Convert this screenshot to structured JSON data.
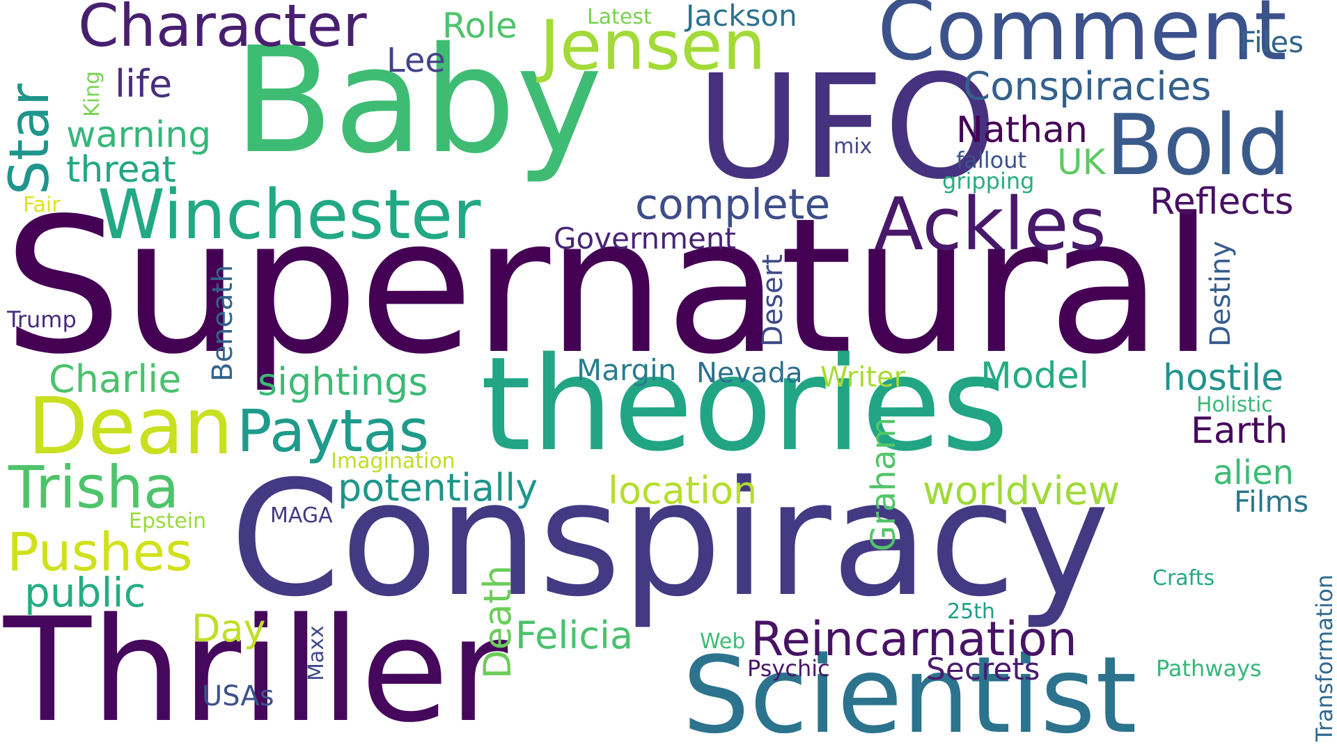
{
  "words": [
    {
      "text": "Supernatural",
      "color": "#440154"
    },
    {
      "text": "Conspiracy",
      "color": "#443983"
    },
    {
      "text": "Baby",
      "color": "#3fbc73"
    },
    {
      "text": "theories",
      "color": "#21a585"
    },
    {
      "text": "UFO",
      "color": "#46327e"
    },
    {
      "text": "Thriller",
      "color": "#46085c"
    },
    {
      "text": "Scientist",
      "color": "#2c738e"
    },
    {
      "text": "Comment",
      "color": "#3b528b"
    },
    {
      "text": "Bold",
      "color": "#3b5a8c"
    },
    {
      "text": "Jensen",
      "color": "#a2da37"
    },
    {
      "text": "Ackles",
      "color": "#48186a"
    },
    {
      "text": "Winchester",
      "color": "#22a884"
    },
    {
      "text": "Dean",
      "color": "#c8e020"
    },
    {
      "text": "Character",
      "color": "#481f70"
    },
    {
      "text": "Star",
      "color": "#1f958b"
    },
    {
      "text": "Reincarnation",
      "color": "#471365"
    },
    {
      "text": "Trisha",
      "color": "#4ec36b"
    },
    {
      "text": "Paytas",
      "color": "#1e9b8a"
    },
    {
      "text": "Conspiracies",
      "color": "#34608d"
    },
    {
      "text": "complete",
      "color": "#3d4d8a"
    },
    {
      "text": "Pushes",
      "color": "#d0e11c"
    },
    {
      "text": "potentially",
      "color": "#1f958b"
    },
    {
      "text": "location",
      "color": "#b5de2b"
    },
    {
      "text": "worldview",
      "color": "#a0da39"
    },
    {
      "text": "sightings",
      "color": "#3aba76"
    },
    {
      "text": "Charlie",
      "color": "#4ac16d"
    },
    {
      "text": "public",
      "color": "#25ac82"
    },
    {
      "text": "Felicia",
      "color": "#4ac16d"
    },
    {
      "text": "Nathan",
      "color": "#440154"
    },
    {
      "text": "Reflects",
      "color": "#471063"
    },
    {
      "text": "hostile",
      "color": "#20928c"
    },
    {
      "text": "Earth",
      "color": "#46085c"
    },
    {
      "text": "alien",
      "color": "#3dbc74"
    },
    {
      "text": "Films",
      "color": "#2a778e"
    },
    {
      "text": "Model",
      "color": "#25ab82"
    },
    {
      "text": "Secrets",
      "color": "#481c6e"
    },
    {
      "text": "warning",
      "color": "#35b779"
    },
    {
      "text": "threat",
      "color": "#22a785"
    },
    {
      "text": "life",
      "color": "#472f7d"
    },
    {
      "text": "Role",
      "color": "#4ec36b"
    },
    {
      "text": "Lee",
      "color": "#414487"
    },
    {
      "text": "Jackson",
      "color": "#2c728e"
    },
    {
      "text": "Files",
      "color": "#33638d"
    },
    {
      "text": "Government",
      "color": "#482576"
    },
    {
      "text": "Margin",
      "color": "#287d8e"
    },
    {
      "text": "Nevada",
      "color": "#2d708e"
    },
    {
      "text": "Writer",
      "color": "#a8db34"
    },
    {
      "text": "Day",
      "color": "#c0df25"
    },
    {
      "text": "Graham",
      "color": "#52c569"
    },
    {
      "text": "Death",
      "color": "#6ccd5a"
    },
    {
      "text": "Desert",
      "color": "#3e4a89"
    },
    {
      "text": "Destiny",
      "color": "#365c8d"
    },
    {
      "text": "Beneath",
      "color": "#33638d"
    },
    {
      "text": "UK",
      "color": "#5ec962"
    },
    {
      "text": "fallout",
      "color": "#3b528b"
    },
    {
      "text": "gripping",
      "color": "#27ad81"
    },
    {
      "text": "mix",
      "color": "#404588"
    },
    {
      "text": "Latest",
      "color": "#7ad151"
    },
    {
      "text": "King",
      "color": "#7ad151"
    },
    {
      "text": "Fair",
      "color": "#dde318"
    },
    {
      "text": "Trump",
      "color": "#472a7a"
    },
    {
      "text": "Imagination",
      "color": "#bddf26"
    },
    {
      "text": "Epstein",
      "color": "#9bd93c"
    },
    {
      "text": "MAGA",
      "color": "#453882"
    },
    {
      "text": "Holistic",
      "color": "#38b977"
    },
    {
      "text": "Crafts",
      "color": "#23a983"
    },
    {
      "text": "25th",
      "color": "#1f9e89"
    },
    {
      "text": "Web",
      "color": "#3dbc74"
    },
    {
      "text": "Psychic",
      "color": "#481668"
    },
    {
      "text": "Pathways",
      "color": "#35b779"
    },
    {
      "text": "USAs",
      "color": "#3b528b"
    },
    {
      "text": "Maxx",
      "color": "#3e4989"
    },
    {
      "text": "Transformation",
      "color": "#31688e"
    }
  ]
}
